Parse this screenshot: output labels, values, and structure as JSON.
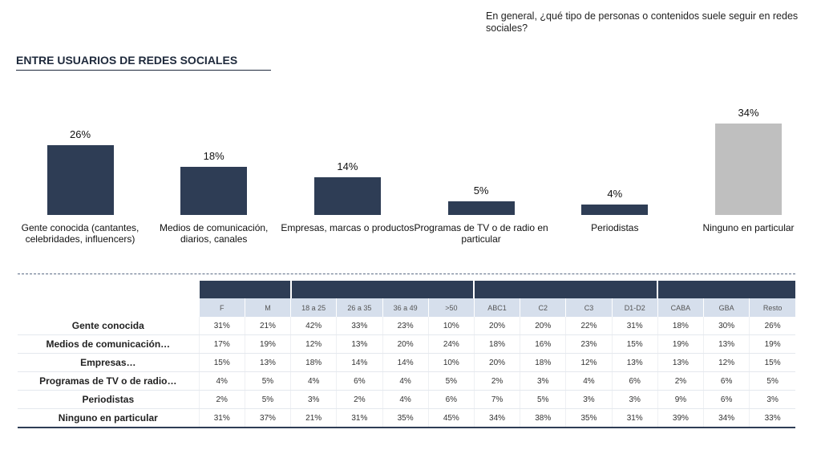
{
  "header": {
    "question": "En general, ¿qué tipo de personas o contenidos suele seguir en redes sociales?",
    "title": "ENTRE USUARIOS DE REDES SOCIALES"
  },
  "chart_data": {
    "type": "bar",
    "categories": [
      "Gente conocida (cantantes, celebridades, influencers)",
      "Medios de comunicación, diarios, canales",
      "Empresas, marcas o productos",
      "Programas de TV o de radio en particular",
      "Periodistas",
      "Ninguno en particular"
    ],
    "values": [
      26,
      18,
      14,
      5,
      4,
      34
    ],
    "value_labels": [
      "26%",
      "18%",
      "14%",
      "5%",
      "4%",
      "34%"
    ],
    "colors": [
      "#2e3d55",
      "#2e3d55",
      "#2e3d55",
      "#2e3d55",
      "#2e3d55",
      "#bfbfbf"
    ]
  },
  "table": {
    "columns": [
      "F",
      "M",
      "18 a 25",
      "26 a 35",
      "36 a 49",
      ">50",
      "ABC1",
      "C2",
      "C3",
      "D1-D2",
      "CABA",
      "GBA",
      "Resto"
    ],
    "rows": [
      [
        "Gente conocida",
        "31%",
        "21%",
        "42%",
        "33%",
        "23%",
        "10%",
        "20%",
        "20%",
        "22%",
        "31%",
        "18%",
        "30%",
        "26%"
      ],
      [
        "Medios de comunicación…",
        "17%",
        "19%",
        "12%",
        "13%",
        "20%",
        "24%",
        "18%",
        "16%",
        "23%",
        "15%",
        "19%",
        "13%",
        "19%"
      ],
      [
        "Empresas…",
        "15%",
        "13%",
        "18%",
        "14%",
        "14%",
        "10%",
        "20%",
        "18%",
        "12%",
        "13%",
        "13%",
        "12%",
        "15%"
      ],
      [
        "Programas de TV o de radio…",
        "4%",
        "5%",
        "4%",
        "6%",
        "4%",
        "5%",
        "2%",
        "3%",
        "4%",
        "6%",
        "2%",
        "6%",
        "5%"
      ],
      [
        "Periodistas",
        "2%",
        "5%",
        "3%",
        "2%",
        "4%",
        "6%",
        "7%",
        "5%",
        "3%",
        "3%",
        "9%",
        "6%",
        "3%"
      ],
      [
        "Ninguno en particular",
        "31%",
        "37%",
        "21%",
        "31%",
        "35%",
        "45%",
        "34%",
        "38%",
        "35%",
        "31%",
        "39%",
        "34%",
        "33%"
      ]
    ]
  }
}
